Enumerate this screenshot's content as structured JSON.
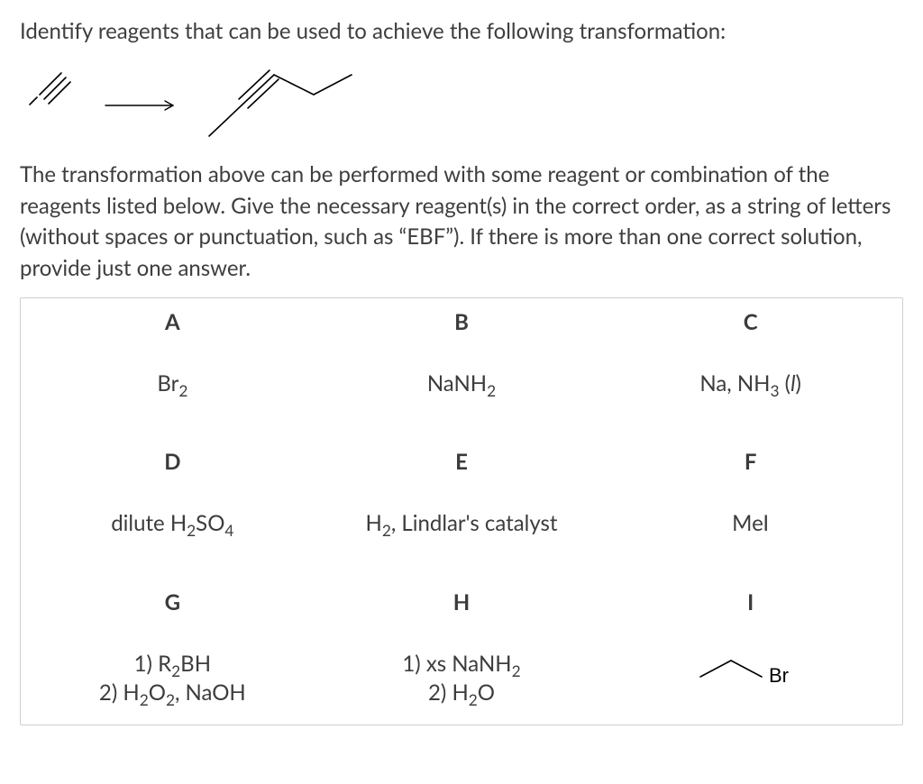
{
  "question": "Identify reagents that can be used to achieve the following transformation:",
  "explanation": "The transformation above can be performed with some reagent or combination of the reagents listed below. Give the necessary reagent(s) in the correct order, as a string of letters (without spaces or punctuation, such as “EBF”). If there is more than one correct solution, provide just one answer.",
  "reagents": {
    "A": {
      "key": "A",
      "html": "Br<sub>2</sub>"
    },
    "B": {
      "key": "B",
      "html": "NaNH<sub>2</sub>"
    },
    "C": {
      "key": "C",
      "html": "Na, NH<sub>3</sub> (<span class=\"italic\">l</span>)"
    },
    "D": {
      "key": "D",
      "html": "dilute H<sub>2</sub>SO<sub>4</sub>"
    },
    "E": {
      "key": "E",
      "html": "H<sub>2</sub>, Lindlar's catalyst"
    },
    "F": {
      "key": "F",
      "html": "MeI"
    },
    "G": {
      "key": "G",
      "html": "1) R<sub>2</sub>BH<br>2) H<sub>2</sub>O<sub>2</sub>, NaOH"
    },
    "H": {
      "key": "H",
      "html": "1) xs NaNH<sub>2</sub><br>2) H<sub>2</sub>O"
    },
    "I": {
      "key": "I",
      "svg": true
    }
  },
  "style": {
    "text_color": "#3e3e3e",
    "border_color": "#cfcfcf",
    "background": "#ffffff",
    "stroke": "#000000",
    "font_size_body": 24,
    "font_size_key": 24
  }
}
